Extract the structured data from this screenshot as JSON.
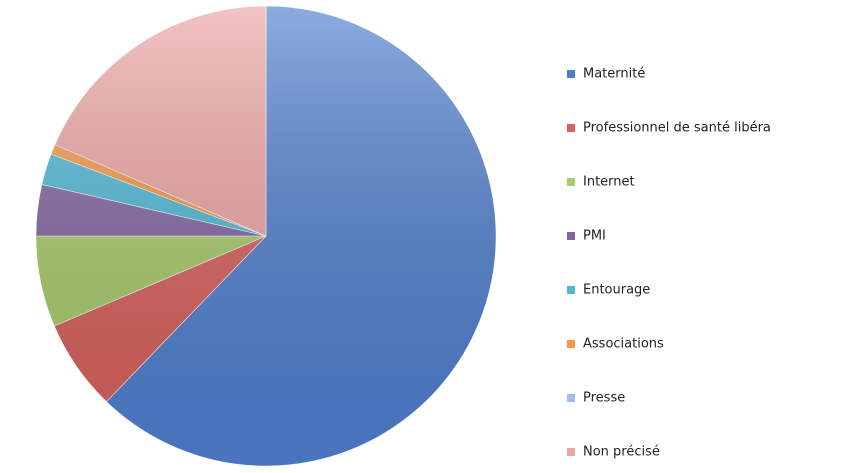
{
  "chart_data": {
    "type": "pie",
    "categories": [
      "Maternité",
      "Professionnel de santé libéra",
      "Internet",
      "PMI",
      "Entourage",
      "Associations",
      "Presse",
      "Non précisé"
    ],
    "values": [
      62.2,
      6.4,
      6.4,
      3.6,
      2.2,
      0.7,
      0,
      18.5
    ],
    "colors": [
      "#4f7fcf",
      "#d9605c",
      "#a8cc6a",
      "#8064a2",
      "#4bb8d6",
      "#f79646",
      "#9dbcf0",
      "#eea3a3"
    ],
    "legend": "right"
  }
}
